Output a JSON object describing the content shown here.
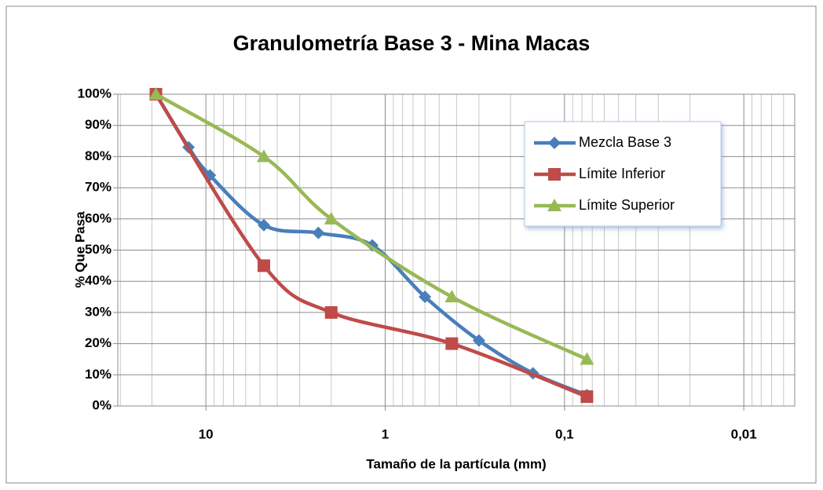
{
  "chart_data": {
    "type": "line",
    "title": "Granulometría Base 3 - Mina Macas",
    "x_label": "Tamaño de la partícula (mm)",
    "y_label": "% Que Pasa",
    "x_log": true,
    "xlim": [
      31,
      0.0052
    ],
    "xticks": [
      10,
      1,
      {
        "value": 0.1,
        "label": "0,1"
      },
      {
        "value": 0.01,
        "label": "0,01"
      }
    ],
    "ylim": [
      0,
      100
    ],
    "yticks": [
      {
        "value": 0,
        "label": "0%"
      },
      {
        "value": 10,
        "label": "10%"
      },
      {
        "value": 20,
        "label": "20%"
      },
      {
        "value": 30,
        "label": "30%"
      },
      {
        "value": 40,
        "label": "40%"
      },
      {
        "value": 50,
        "label": "50%"
      },
      {
        "value": 60,
        "label": "60%"
      },
      {
        "value": 70,
        "label": "70%"
      },
      {
        "value": 80,
        "label": "80%"
      },
      {
        "value": 90,
        "label": "90%"
      },
      {
        "value": 100,
        "label": "100%"
      }
    ],
    "grid": true,
    "minor_grid": true,
    "smooth": true,
    "legend": "upper right",
    "series": [
      {
        "name": "Mezcla Base 3",
        "color": "#4a7ebb",
        "x": [
          19,
          12.5,
          9.5,
          4.75,
          2.36,
          1.18,
          0.6,
          0.3,
          0.15,
          0.075
        ],
        "values": [
          100,
          83,
          74,
          58,
          55.5,
          51.5,
          35,
          21,
          10.5,
          3.5
        ]
      },
      {
        "name": "Límite Inferior",
        "color": "#be4b48",
        "x": [
          19,
          4.75,
          2,
          0.425,
          0.075
        ],
        "values": [
          100,
          45,
          30,
          20,
          3
        ]
      },
      {
        "name": "Límite Superior",
        "color": "#98b954",
        "x": [
          19,
          4.75,
          2,
          0.425,
          0.075
        ],
        "values": [
          100,
          80,
          60,
          35,
          15
        ]
      }
    ]
  }
}
